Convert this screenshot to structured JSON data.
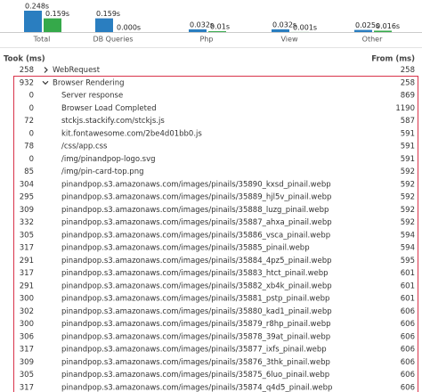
{
  "summary": {
    "categories": [
      "Total",
      "DB Queries",
      "Php",
      "View",
      "Other"
    ],
    "series": [
      {
        "color": "#2a7ec0",
        "values": [
          0.248,
          0.159,
          0.032,
          0.032,
          0.025
        ],
        "value_labels": [
          "0.248s",
          "0.159s",
          "0.032s",
          "0.032s",
          "0.025s"
        ]
      },
      {
        "color": "#35a94a",
        "values": [
          0.159,
          0.0,
          0.01,
          0.001,
          0.016
        ],
        "value_labels": [
          "0.159s",
          "0.000s",
          "0.01s",
          "0.001s",
          "0.016s"
        ]
      }
    ]
  },
  "table": {
    "columns": [
      "Took (ms)",
      "From (ms)"
    ],
    "rows": [
      {
        "took": 258,
        "name": "WebRequest",
        "from": 258
      },
      {
        "took": 932,
        "name": "Browser Rendering",
        "from": 258
      },
      {
        "took": 0,
        "name": "Server response",
        "from": 869
      },
      {
        "took": 0,
        "name": "Browser Load Completed",
        "from": 1190
      },
      {
        "took": 72,
        "name": "stckjs.stackify.com/stckjs.js",
        "from": 587
      },
      {
        "took": 0,
        "name": "kit.fontawesome.com/2be4d01bb0.js",
        "from": 591
      },
      {
        "took": 78,
        "name": "/css/app.css",
        "from": 591
      },
      {
        "took": 0,
        "name": "/img/pinandpop-logo.svg",
        "from": 591
      },
      {
        "took": 85,
        "name": "/img/pin-card-top.png",
        "from": 592
      },
      {
        "took": 304,
        "name": "pinandpop.s3.amazonaws.com/images/pinails/35890_kxsd_pinail.webp",
        "from": 592
      },
      {
        "took": 295,
        "name": "pinandpop.s3.amazonaws.com/images/pinails/35889_hjl5v_pinail.webp",
        "from": 592
      },
      {
        "took": 309,
        "name": "pinandpop.s3.amazonaws.com/images/pinails/35888_luzg_pinail.webp",
        "from": 592
      },
      {
        "took": 332,
        "name": "pinandpop.s3.amazonaws.com/images/pinails/35887_ahxa_pinail.webp",
        "from": 592
      },
      {
        "took": 305,
        "name": "pinandpop.s3.amazonaws.com/images/pinails/35886_vsca_pinail.webp",
        "from": 594
      },
      {
        "took": 317,
        "name": "pinandpop.s3.amazonaws.com/images/pinails/35885_pinail.webp",
        "from": 594
      },
      {
        "took": 291,
        "name": "pinandpop.s3.amazonaws.com/images/pinails/35884_4pz5_pinail.webp",
        "from": 595
      },
      {
        "took": 317,
        "name": "pinandpop.s3.amazonaws.com/images/pinails/35883_htct_pinail.webp",
        "from": 601
      },
      {
        "took": 291,
        "name": "pinandpop.s3.amazonaws.com/images/pinails/35882_xb4k_pinail.webp",
        "from": 601
      },
      {
        "took": 300,
        "name": "pinandpop.s3.amazonaws.com/images/pinails/35881_pstp_pinail.webp",
        "from": 601
      },
      {
        "took": 302,
        "name": "pinandpop.s3.amazonaws.com/images/pinails/35880_kad1_pinail.webp",
        "from": 606
      },
      {
        "took": 300,
        "name": "pinandpop.s3.amazonaws.com/images/pinails/35879_r8hp_pinail.webp",
        "from": 606
      },
      {
        "took": 306,
        "name": "pinandpop.s3.amazonaws.com/images/pinails/35878_39at_pinail.webp",
        "from": 606
      },
      {
        "took": 317,
        "name": "pinandpop.s3.amazonaws.com/images/pinails/35877_ixfs_pinail.webp",
        "from": 606
      },
      {
        "took": 309,
        "name": "pinandpop.s3.amazonaws.com/images/pinails/35876_3thk_pinail.webp",
        "from": 606
      },
      {
        "took": 305,
        "name": "pinandpop.s3.amazonaws.com/images/pinails/35875_6luo_pinail.webp",
        "from": 606
      },
      {
        "took": 317,
        "name": "pinandpop.s3.amazonaws.com/images/pinails/35874_q4d5_pinail.webp",
        "from": 606
      }
    ]
  }
}
